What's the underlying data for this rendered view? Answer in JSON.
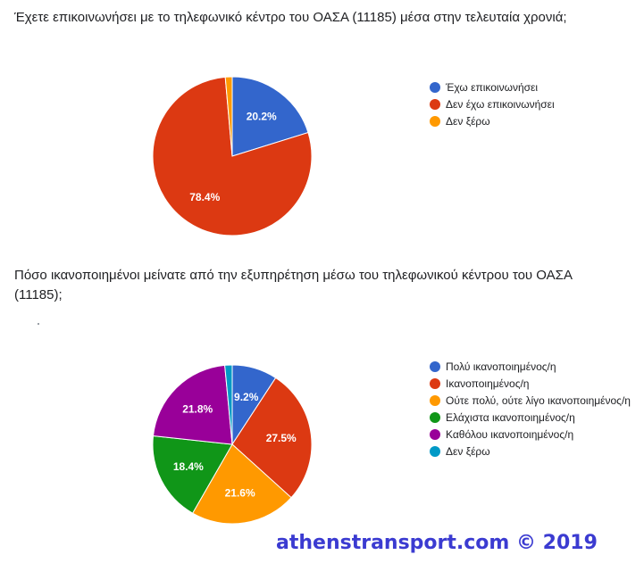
{
  "watermark": "athenstransport.com © 2019",
  "chart_data": [
    {
      "type": "pie",
      "title": "Έχετε επικοινωνήσει με το τηλεφωνικό κέντρο του ΟΑΣΑ (11185) μέσα στην τελευταία χρονιά;",
      "legend": "right",
      "start_angle_deg": 90,
      "slices": [
        {
          "label": "Έχω επικοινωνήσει",
          "value": 20.2,
          "color": "#3366cc",
          "display": "20.2%"
        },
        {
          "label": "Δεν έχω επικοινωνήσει",
          "value": 78.4,
          "color": "#dc3912",
          "display": "78.4%"
        },
        {
          "label": "Δεν ξέρω",
          "value": 1.4,
          "color": "#ff9900",
          "display": ""
        }
      ]
    },
    {
      "type": "pie",
      "title": "Πόσο ικανοποιημένοι μείνατε από την εξυπηρέτηση μέσω του τηλεφωνικού κέντρου του ΟΑΣΑ (11185);",
      "legend": "right",
      "start_angle_deg": 90,
      "slices": [
        {
          "label": "Πολύ ικανοποιημένος/η",
          "value": 9.2,
          "color": "#3366cc",
          "display": "9.2%"
        },
        {
          "label": "Ικανοποιημένος/η",
          "value": 27.5,
          "color": "#dc3912",
          "display": "27.5%"
        },
        {
          "label": "Ούτε πολύ, ούτε λίγο ικανοποιημένος/η",
          "value": 21.6,
          "color": "#ff9900",
          "display": "21.6%"
        },
        {
          "label": "Ελάχιστα ικανοποιημένος/η",
          "value": 18.4,
          "color": "#109618",
          "display": "18.4%"
        },
        {
          "label": "Καθόλου ικανοποιημένος/η",
          "value": 21.8,
          "color": "#990099",
          "display": "21.8%"
        },
        {
          "label": "Δεν ξέρω",
          "value": 1.5,
          "color": "#0099c6",
          "display": ""
        }
      ]
    }
  ]
}
